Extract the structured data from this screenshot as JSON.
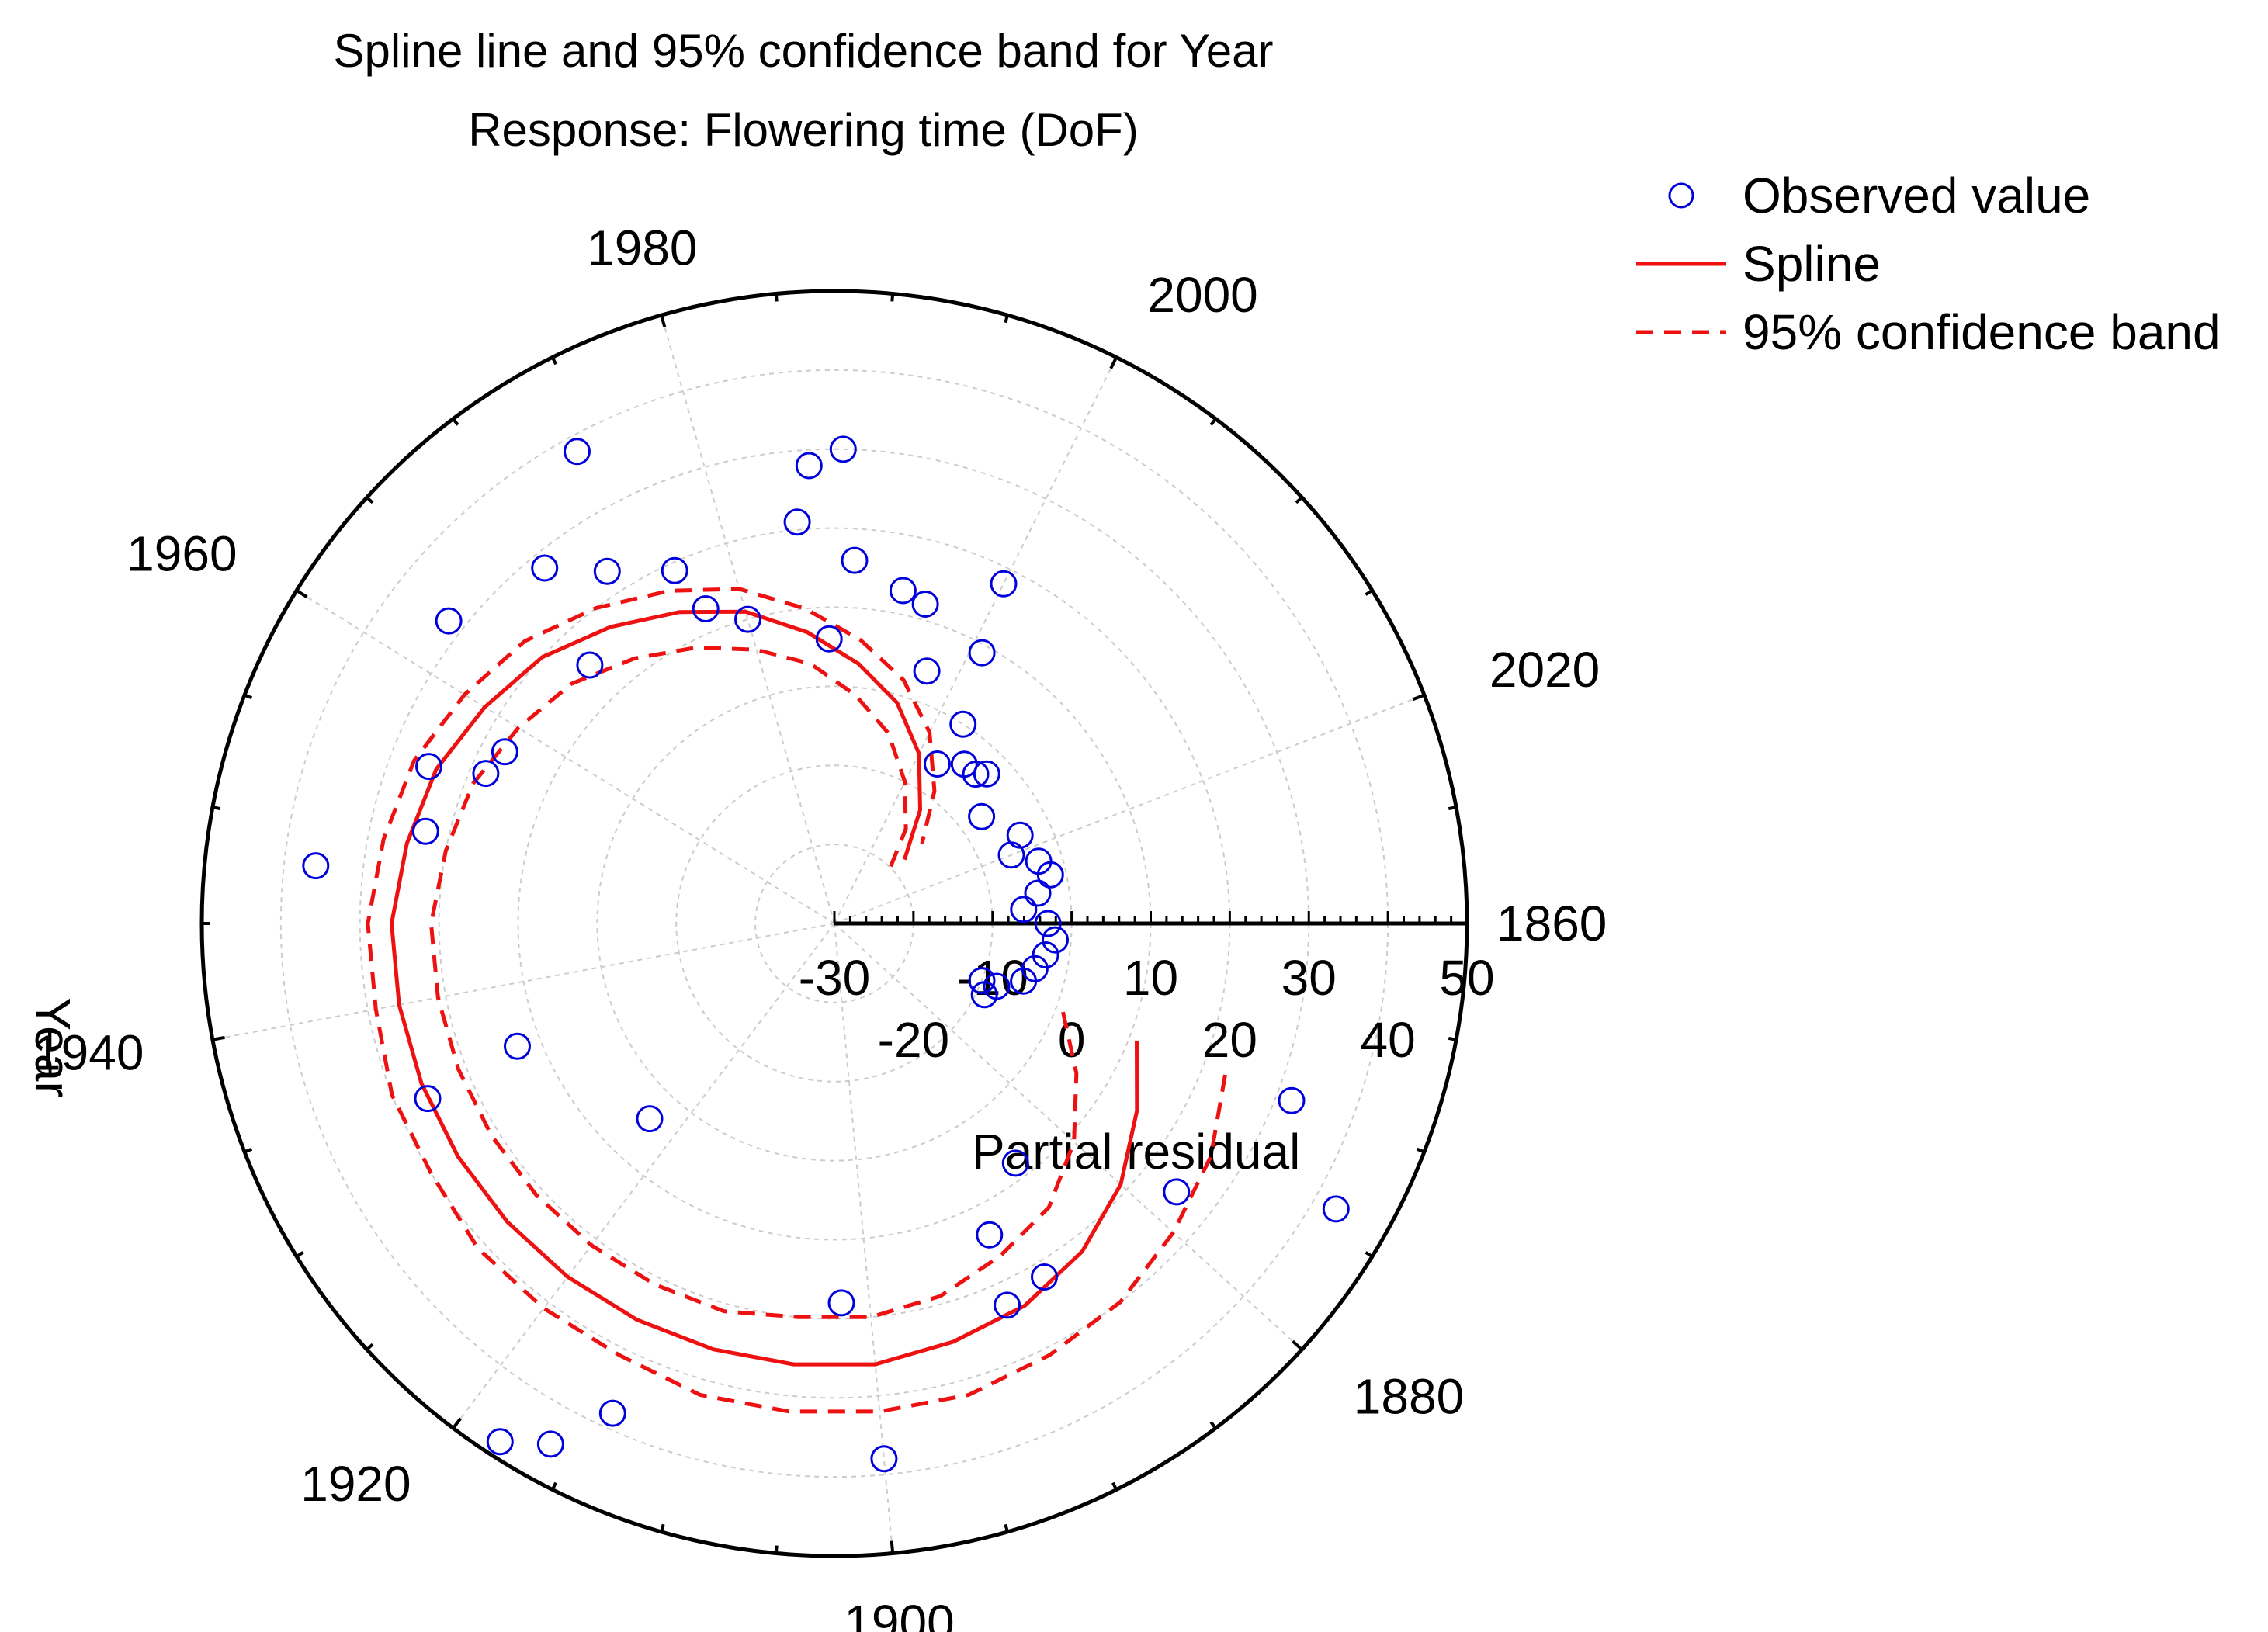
{
  "chart_data": {
    "type": "polar-scatter",
    "title": "Spline line and 95% confidence band for Year",
    "subtitle": "Response: Flowering time (DoF)",
    "angular_axis": {
      "label": "Year",
      "range": [
        1860,
        2030
      ],
      "direction": "clockwise",
      "zero_angle": "east",
      "tick_labels": [
        "1860",
        "1880",
        "1900",
        "1920",
        "1940",
        "1960",
        "1980",
        "2000",
        "2020"
      ]
    },
    "radial_axis": {
      "label": "Partial residual",
      "range": [
        -30,
        50
      ],
      "tick_labels": [
        "-30",
        "-20",
        "-10",
        "0",
        "10",
        "20",
        "30",
        "40",
        "50"
      ]
    },
    "legend": {
      "position": "top-right",
      "items": [
        {
          "label": "Observed value",
          "style": "circle"
        },
        {
          "label": "Spline",
          "style": "solid"
        },
        {
          "label": "95% confidence band",
          "style": "dashed"
        }
      ]
    },
    "colors": {
      "points": "#0000dd",
      "spline": "#ee1111",
      "axis": "#000000",
      "grid": "#cccccc"
    },
    "spline": {
      "x": [
        1870,
        1875,
        1880,
        1885,
        1890,
        1895,
        1900,
        1905,
        1910,
        1915,
        1920,
        1925,
        1930,
        1935,
        1940,
        1945,
        1950,
        1955,
        1960,
        1965,
        1970,
        1975,
        1980,
        1985,
        1990,
        1995,
        2000,
        2005,
        2010
      ],
      "y": [
        11,
        15,
        19,
        22,
        24,
        25,
        26,
        26,
        26,
        26,
        26,
        26,
        26,
        26,
        26,
        26,
        25,
        24,
        22,
        20,
        17,
        14,
        11,
        7,
        3,
        -1,
        -6,
        -12,
        -18
      ]
    },
    "upper_band": {
      "x": [
        1870,
        1875,
        1880,
        1885,
        1890,
        1895,
        1900,
        1905,
        1910,
        1915,
        1920,
        1925,
        1930,
        1935,
        1940,
        1945,
        1950,
        1955,
        1960,
        1965,
        1970,
        1975,
        1980,
        1985,
        1990,
        1995,
        2000,
        2005,
        2010
      ],
      "y": [
        23,
        26,
        28,
        30,
        31,
        32,
        32,
        32,
        32,
        31,
        31,
        31,
        30,
        30,
        29,
        29,
        28,
        27,
        25,
        23,
        20,
        17,
        14,
        10,
        6,
        2,
        -3,
        -9,
        -15
      ]
    },
    "lower_band": {
      "x": [
        1870,
        1875,
        1880,
        1885,
        1890,
        1895,
        1900,
        1905,
        1910,
        1915,
        1920,
        1925,
        1930,
        1935,
        1940,
        1945,
        1950,
        1955,
        1960,
        1965,
        1970,
        1975,
        1980,
        1985,
        1990,
        1995,
        2000,
        2005,
        2010
      ],
      "y": [
        1,
        6,
        11,
        15,
        17,
        19,
        20,
        20,
        21,
        21,
        21,
        21,
        21,
        21,
        21,
        21,
        20,
        19,
        17,
        15,
        12,
        9,
        6,
        3,
        -1,
        -5,
        -10,
        -15,
        -21
      ]
    },
    "points": {
      "x": [
        1870,
        1878,
        1874,
        1885,
        1888,
        1890,
        1891,
        1900,
        1902,
        1914,
        1916,
        1918,
        1923,
        1934,
        1935,
        1948,
        1951,
        1955,
        1956,
        1958,
        1963,
        1967,
        1969,
        1972,
        1974,
        1976,
        1977,
        1980,
        1985,
        1986,
        1987,
        1988,
        1989,
        1993,
        1995,
        1997,
        2000,
        2001,
        2003,
        2003,
        2006,
        2008,
        2009,
        2013,
        2018,
        2020,
        2022,
        2024,
        2026,
        2028,
        2030,
        2032,
        2034,
        2036,
        2038,
        2040,
        2040,
        2042
      ],
      "y": [
        32,
        25,
        43,
        8,
        22,
        14,
        23,
        38,
        18,
        38,
        45,
        48,
        4,
        26,
        13,
        36,
        23,
        25,
        18,
        17,
        32,
        15,
        28,
        23,
        38,
        19,
        13,
        10,
        21,
        28,
        6,
        30,
        16,
        13,
        12,
        4,
        18,
        9,
        0,
        -6,
        -4,
        -4,
        -3,
        -7,
        -4,
        -6,
        -3,
        -2,
        -4,
        -6,
        -3,
        -2,
        -3,
        -4,
        -5,
        -8,
        -10,
        -9
      ]
    }
  },
  "chart_ui": {
    "angle_label_1860": "1860",
    "angle_label_1880": "1880",
    "angle_label_1900": "1900",
    "angle_label_1920": "1920",
    "angle_label_1940": "1940",
    "angle_label_1960": "1960",
    "angle_label_1980": "1980",
    "angle_label_2000": "2000",
    "angle_label_2020": "2020"
  }
}
